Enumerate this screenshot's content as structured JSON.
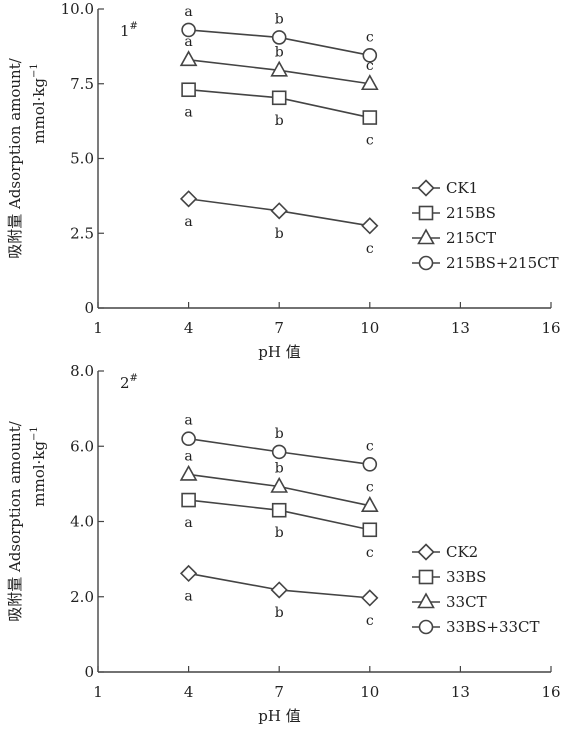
{
  "chart_data": [
    {
      "type": "line",
      "panel_label": "1",
      "panel_label_sup": "#",
      "xlabel": "pH 值",
      "ylabel_line1": "吸附量 Adsorption amount/",
      "ylabel_line2": "mmol·kg",
      "ylabel_sup": "−1",
      "xlim": [
        1,
        16
      ],
      "ylim": [
        0,
        10
      ],
      "xticks": [
        1,
        4,
        7,
        10,
        13,
        16
      ],
      "xtick_labels": [
        "1",
        "4",
        "7",
        "10",
        "13",
        "16"
      ],
      "yticks": [
        0,
        2.5,
        5,
        7.5,
        10
      ],
      "ytick_labels": [
        "0",
        "2.5",
        "5.0",
        "7.5",
        "10.0"
      ],
      "grid": false,
      "legend_position": "right",
      "x": [
        4,
        7,
        10
      ],
      "series": [
        {
          "name": "CK1",
          "marker": "diamond",
          "values": [
            3.65,
            3.25,
            2.75
          ],
          "sig": [
            "a",
            "b",
            "c"
          ],
          "sig_pos": "below"
        },
        {
          "name": "215BS",
          "marker": "square",
          "values": [
            7.3,
            7.03,
            6.37
          ],
          "sig": [
            "a",
            "b",
            "c"
          ],
          "sig_pos": "below"
        },
        {
          "name": "215CT",
          "marker": "triangle",
          "values": [
            8.3,
            7.95,
            7.5
          ],
          "sig": [
            "a",
            "b",
            "c"
          ],
          "sig_pos": "above"
        },
        {
          "name": "215BS+215CT",
          "marker": "circle",
          "values": [
            9.3,
            9.05,
            8.45
          ],
          "sig": [
            "a",
            "b",
            "c"
          ],
          "sig_pos": "above"
        }
      ]
    },
    {
      "type": "line",
      "panel_label": "2",
      "panel_label_sup": "#",
      "xlabel": "pH 值",
      "ylabel_line1": "吸附量 Adsorption amount/",
      "ylabel_line2": "mmol·kg",
      "ylabel_sup": "−1",
      "xlim": [
        1,
        16
      ],
      "ylim": [
        0,
        8
      ],
      "xticks": [
        1,
        4,
        7,
        10,
        13,
        16
      ],
      "xtick_labels": [
        "1",
        "4",
        "7",
        "10",
        "13",
        "16"
      ],
      "yticks": [
        0,
        2,
        4,
        6,
        8
      ],
      "ytick_labels": [
        "0",
        "2.0",
        "4.0",
        "6.0",
        "8.0"
      ],
      "grid": false,
      "legend_position": "right",
      "x": [
        4,
        7,
        10
      ],
      "series": [
        {
          "name": "CK2",
          "marker": "diamond",
          "values": [
            2.62,
            2.18,
            1.97
          ],
          "sig": [
            "a",
            "b",
            "c"
          ],
          "sig_pos": "below"
        },
        {
          "name": "33BS",
          "marker": "square",
          "values": [
            4.57,
            4.3,
            3.78
          ],
          "sig": [
            "a",
            "b",
            "c"
          ],
          "sig_pos": "below"
        },
        {
          "name": "33CT",
          "marker": "triangle",
          "values": [
            5.25,
            4.93,
            4.42
          ],
          "sig": [
            "a",
            "b",
            "c"
          ],
          "sig_pos": "above"
        },
        {
          "name": "33BS+33CT",
          "marker": "circle",
          "values": [
            6.2,
            5.85,
            5.52
          ],
          "sig": [
            "a",
            "b",
            "c"
          ],
          "sig_pos": "above"
        }
      ]
    }
  ]
}
